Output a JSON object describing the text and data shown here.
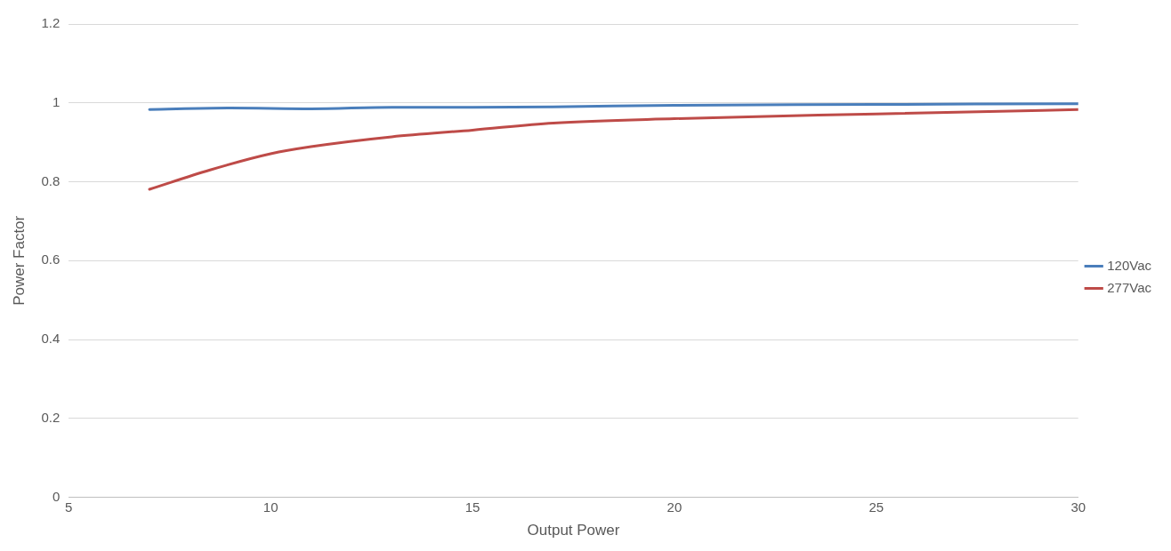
{
  "chart_data": {
    "type": "line",
    "xlabel": "Output Power",
    "ylabel": "Power Factor",
    "xlim": [
      5,
      30
    ],
    "xticks": [
      5,
      10,
      15,
      20,
      25,
      30
    ],
    "ylim": [
      0,
      1.2
    ],
    "yticks": [
      0,
      0.2,
      0.4,
      0.6,
      0.8,
      1,
      1.2
    ],
    "grid": "y",
    "legend": "right",
    "marker": "none",
    "line_style": "solid",
    "series": [
      {
        "name": "120Vac",
        "color": "#4a7ebb",
        "x": [
          7,
          9,
          11,
          13,
          15,
          17,
          20,
          25,
          30
        ],
        "values": [
          0.983,
          0.987,
          0.985,
          0.989,
          0.989,
          0.99,
          0.994,
          0.996,
          0.998
        ]
      },
      {
        "name": "277Vac",
        "color": "#be4b48",
        "x": [
          7,
          8.5,
          10,
          11,
          13,
          15,
          17,
          20,
          25,
          30
        ],
        "values": [
          0.781,
          0.83,
          0.871,
          0.889,
          0.914,
          0.931,
          0.949,
          0.96,
          0.972,
          0.983
        ]
      }
    ]
  }
}
